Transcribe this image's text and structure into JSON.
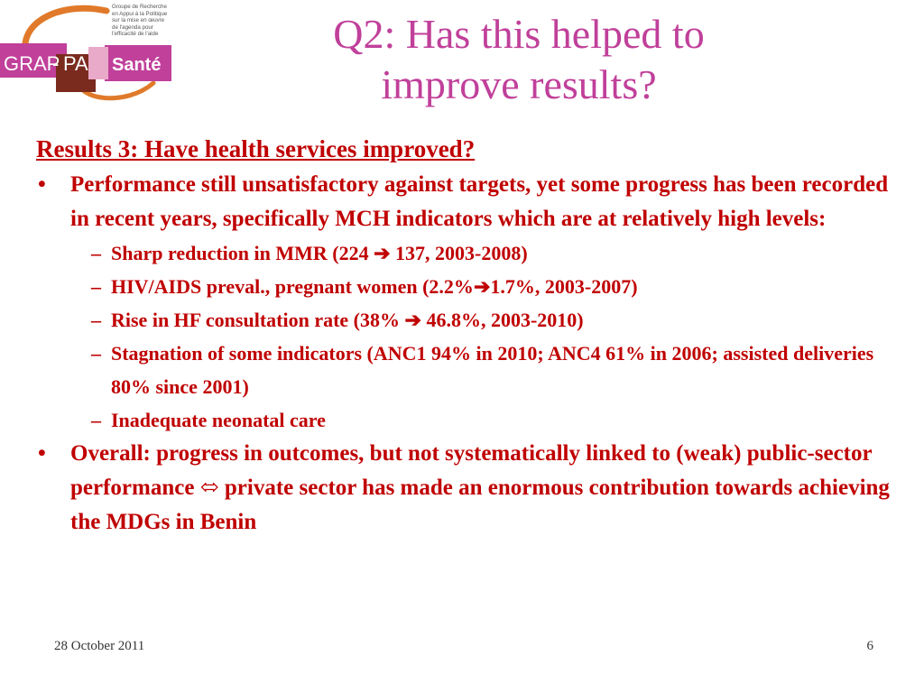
{
  "logo": {
    "tagline": [
      "Groupe de Recherche",
      "en Appui à la Politique",
      "sur la mise en œuvre",
      "de l'agenda pour l'efficacité de l'aide"
    ],
    "name_left": "GRAP",
    "hyphen": "-",
    "name_mid": "PA",
    "name_right": "Santé"
  },
  "title": {
    "line1": "Q2: Has this helped to",
    "line2": "improve results?"
  },
  "heading": "Results 3: Have health services improved?",
  "bullet1": {
    "marker": "•",
    "text": "Performance still unsatisfactory against targets, yet some progress has been recorded in recent years, specifically MCH indicators which are at relatively high levels:",
    "subs": [
      {
        "pre": "Sharp reduction in MMR (224 ",
        "arrow": "➔",
        "post": " 137, 2003-2008)"
      },
      {
        "pre": "HIV/AIDS preval., pregnant women (2.2%",
        "arrow": "➔",
        "post": "1.7%, 2003-2007)"
      },
      {
        "pre": "Rise in HF consultation rate (38% ",
        "arrow": "➔",
        "post": " 46.8%, 2003-2010)"
      },
      {
        "pre": "Stagnation of some indicators (ANC1 94% in 2010; ANC4 61% in 2006; assisted deliveries 80% since 2001)",
        "arrow": "",
        "post": ""
      },
      {
        "pre": "Inadequate neonatal care",
        "arrow": "",
        "post": ""
      }
    ],
    "dash": "–"
  },
  "bullet2": {
    "marker": "•",
    "pre": "Overall: progress in outcomes, but not systematically linked to (weak) public-sector performance ",
    "arrow": "⬄",
    "post": " private sector has made an enormous contribution towards achieving the MDGs in Benin"
  },
  "footer": {
    "date": "28 October 2011",
    "page": "6"
  },
  "colors": {
    "title": "#c0409a",
    "body": "#c00000",
    "logo_magenta": "#c0409a",
    "logo_orange": "#e07a2a",
    "logo_brown": "#7a2b1e"
  }
}
